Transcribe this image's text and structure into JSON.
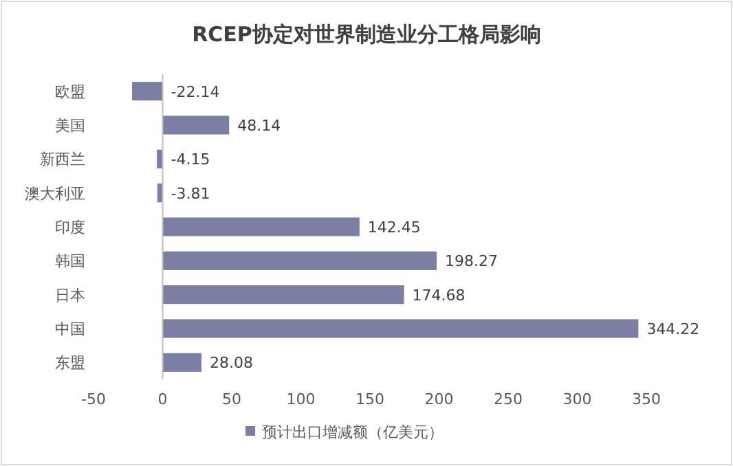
{
  "chart_data": {
    "type": "bar",
    "orientation": "horizontal",
    "title": "RCEP协定对世界制造业分工格局影响",
    "categories": [
      "欧盟",
      "美国",
      "新西兰",
      "澳大利亚",
      "印度",
      "韩国",
      "日本",
      "中国",
      "东盟"
    ],
    "series": [
      {
        "name": "预计出口增减额（亿美元）",
        "color": "#7a7fa3",
        "values": [
          -22.14,
          48.14,
          -4.15,
          -3.81,
          142.45,
          198.27,
          174.68,
          344.22,
          28.08
        ]
      }
    ],
    "xlim": [
      -50,
      350
    ],
    "xticks": [
      -50,
      0,
      50,
      100,
      150,
      200,
      250,
      300,
      350
    ],
    "data_labels": true,
    "legend": "bottom"
  }
}
